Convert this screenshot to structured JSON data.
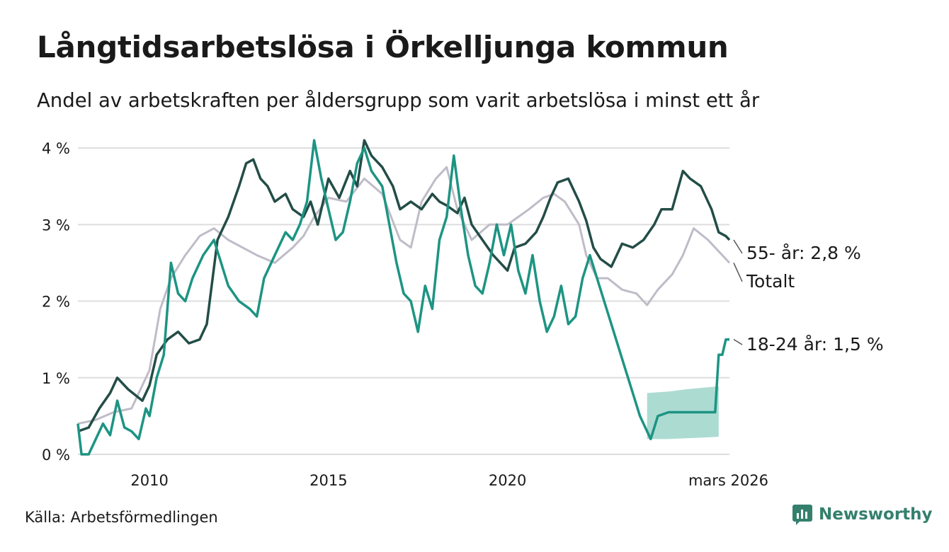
{
  "title": "Långtidsarbetslösa i Örkelljunga kommun",
  "subtitle": "Andel av arbetskraften per åldersgrupp som varit arbetslösa i minst ett år",
  "source": "Källa: Arbetsförmedlingen",
  "brand": "Newsworthy",
  "colors": {
    "senior": "#234d47",
    "total": "#bfbcc8",
    "youth": "#1d9483",
    "band": "#a8d9d0",
    "grid": "#dddddd",
    "brand": "#34806c"
  },
  "chart_data": {
    "type": "line",
    "ylabel": "",
    "ylim": [
      0,
      4.5
    ],
    "xlim": [
      2008.0,
      2026.2
    ],
    "yticks": [
      0,
      1,
      2,
      3,
      4
    ],
    "ytick_labels": [
      "0 %",
      "1 %",
      "2 %",
      "3 %",
      "4 %"
    ],
    "xticks": [
      2010,
      2015,
      2020,
      2026.17
    ],
    "xtick_labels": [
      "2010",
      "2015",
      "2020",
      "mars 2026"
    ],
    "series": [
      {
        "name": "Totalt",
        "label": "Totalt",
        "color": "#bfbcc8",
        "x": [
          2008.0,
          2008.5,
          2009.0,
          2009.5,
          2010.0,
          2010.3,
          2010.6,
          2011.0,
          2011.4,
          2011.8,
          2012.2,
          2012.6,
          2013.0,
          2013.5,
          2014.0,
          2014.3,
          2014.6,
          2015.0,
          2015.5,
          2016.0,
          2016.5,
          2017.0,
          2017.3,
          2017.6,
          2018.0,
          2018.3,
          2018.6,
          2019.0,
          2019.5,
          2020.0,
          2020.3,
          2020.6,
          2021.0,
          2021.3,
          2021.6,
          2022.0,
          2022.2,
          2022.5,
          2022.8,
          2023.2,
          2023.6,
          2023.9,
          2024.2,
          2024.6,
          2024.9,
          2025.2,
          2025.6,
          2026.0,
          2026.2
        ],
        "y": [
          0.4,
          0.45,
          0.55,
          0.6,
          1.1,
          1.9,
          2.3,
          2.6,
          2.85,
          2.95,
          2.8,
          2.7,
          2.6,
          2.5,
          2.7,
          2.85,
          3.1,
          3.35,
          3.3,
          3.6,
          3.4,
          2.8,
          2.7,
          3.3,
          3.6,
          3.75,
          3.2,
          2.8,
          3.0,
          3.0,
          3.1,
          3.2,
          3.35,
          3.4,
          3.3,
          3.0,
          2.6,
          2.3,
          2.3,
          2.15,
          2.1,
          1.95,
          2.15,
          2.35,
          2.6,
          2.95,
          2.8,
          2.6,
          2.5
        ]
      },
      {
        "name": "55- år",
        "label": "55- år: 2,8 %",
        "color": "#234d47",
        "x": [
          2008.0,
          2008.3,
          2008.6,
          2008.9,
          2009.1,
          2009.4,
          2009.8,
          2010.0,
          2010.2,
          2010.5,
          2010.8,
          2011.1,
          2011.4,
          2011.6,
          2011.9,
          2012.2,
          2012.5,
          2012.7,
          2012.9,
          2013.1,
          2013.3,
          2013.5,
          2013.8,
          2014.0,
          2014.3,
          2014.5,
          2014.7,
          2015.0,
          2015.3,
          2015.6,
          2015.8,
          2016.0,
          2016.2,
          2016.5,
          2016.8,
          2017.0,
          2017.3,
          2017.6,
          2017.9,
          2018.1,
          2018.3,
          2018.6,
          2018.8,
          2019.0,
          2019.3,
          2019.6,
          2019.8,
          2020.0,
          2020.2,
          2020.5,
          2020.8,
          2021.0,
          2021.2,
          2021.4,
          2021.7,
          2022.0,
          2022.2,
          2022.4,
          2022.6,
          2022.9,
          2023.2,
          2023.5,
          2023.8,
          2024.1,
          2024.3,
          2024.6,
          2024.9,
          2025.1,
          2025.4,
          2025.7,
          2025.9,
          2026.1,
          2026.2
        ],
        "y": [
          0.3,
          0.35,
          0.6,
          0.8,
          1.0,
          0.85,
          0.7,
          0.9,
          1.3,
          1.5,
          1.6,
          1.45,
          1.5,
          1.7,
          2.8,
          3.1,
          3.5,
          3.8,
          3.85,
          3.6,
          3.5,
          3.3,
          3.4,
          3.2,
          3.1,
          3.3,
          3.0,
          3.6,
          3.35,
          3.7,
          3.5,
          4.1,
          3.9,
          3.75,
          3.5,
          3.2,
          3.3,
          3.2,
          3.4,
          3.3,
          3.25,
          3.15,
          3.35,
          3.0,
          2.8,
          2.6,
          2.5,
          2.4,
          2.7,
          2.75,
          2.9,
          3.1,
          3.35,
          3.55,
          3.6,
          3.3,
          3.05,
          2.7,
          2.55,
          2.45,
          2.75,
          2.7,
          2.8,
          3.0,
          3.2,
          3.2,
          3.7,
          3.6,
          3.5,
          3.2,
          2.9,
          2.85,
          2.8
        ]
      },
      {
        "name": "18-24 år",
        "label": "18-24 år: 1,5 %",
        "color": "#1d9483",
        "x": [
          2008.0,
          2008.1,
          2008.3,
          2008.5,
          2008.7,
          2008.9,
          2009.1,
          2009.3,
          2009.5,
          2009.7,
          2009.9,
          2010.0,
          2010.2,
          2010.4,
          2010.6,
          2010.8,
          2011.0,
          2011.2,
          2011.5,
          2011.8,
          2012.0,
          2012.2,
          2012.5,
          2012.8,
          2013.0,
          2013.2,
          2013.5,
          2013.8,
          2014.0,
          2014.2,
          2014.4,
          2014.6,
          2014.8,
          2015.0,
          2015.2,
          2015.4,
          2015.6,
          2015.8,
          2016.0,
          2016.2,
          2016.5,
          2016.7,
          2016.9,
          2017.1,
          2017.3,
          2017.5,
          2017.7,
          2017.9,
          2018.1,
          2018.3,
          2018.5,
          2018.7,
          2018.9,
          2019.1,
          2019.3,
          2019.5,
          2019.7,
          2019.9,
          2020.1,
          2020.3,
          2020.5,
          2020.7,
          2020.9,
          2021.1,
          2021.3,
          2021.5,
          2021.7,
          2021.9,
          2022.1,
          2022.3,
          2022.5,
          2022.7,
          2022.9,
          2023.1,
          2023.3,
          2023.5,
          2023.7,
          2024.0,
          2024.2,
          2024.5,
          2024.8,
          2025.1,
          2025.4,
          2025.6,
          2025.8,
          2025.9,
          2026.0,
          2026.1,
          2026.2
        ],
        "y": [
          0.4,
          0.0,
          0.0,
          0.2,
          0.4,
          0.25,
          0.7,
          0.35,
          0.3,
          0.2,
          0.6,
          0.5,
          1.0,
          1.3,
          2.5,
          2.1,
          2.0,
          2.3,
          2.6,
          2.8,
          2.5,
          2.2,
          2.0,
          1.9,
          1.8,
          2.3,
          2.6,
          2.9,
          2.8,
          3.0,
          3.3,
          4.1,
          3.6,
          3.2,
          2.8,
          2.9,
          3.3,
          3.8,
          4.0,
          3.7,
          3.5,
          3.0,
          2.5,
          2.1,
          2.0,
          1.6,
          2.2,
          1.9,
          2.8,
          3.1,
          3.9,
          3.2,
          2.6,
          2.2,
          2.1,
          2.5,
          3.0,
          2.6,
          3.0,
          2.4,
          2.1,
          2.6,
          2.0,
          1.6,
          1.8,
          2.2,
          1.7,
          1.8,
          2.3,
          2.6,
          2.3,
          2.0,
          1.7,
          1.4,
          1.1,
          0.8,
          0.5,
          0.2,
          0.5,
          0.55,
          0.55,
          0.55,
          0.55,
          0.55,
          0.55,
          1.3,
          1.3,
          1.5,
          1.5
        ]
      }
    ],
    "band": {
      "series": "18-24 år",
      "x": [
        2023.9,
        2024.5,
        2025.0,
        2025.5,
        2025.9
      ],
      "upper": [
        0.8,
        0.82,
        0.85,
        0.87,
        0.89
      ],
      "lower": [
        0.2,
        0.2,
        0.21,
        0.22,
        0.23
      ]
    }
  }
}
